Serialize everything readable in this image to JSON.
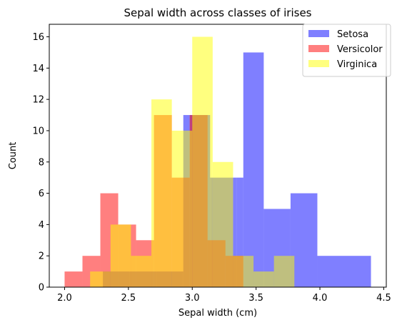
{
  "chart_data": {
    "type": "histogram",
    "title": "Sepal width across classes of irises",
    "xlabel": "Sepal width (cm)",
    "ylabel": "Count",
    "xlim": [
      1.88,
      4.52
    ],
    "ylim": [
      0,
      16.8
    ],
    "xticks": [
      "2.0",
      "2.5",
      "3.0",
      "3.5",
      "4.0",
      "4.5"
    ],
    "yticks": [
      "0",
      "2",
      "4",
      "6",
      "8",
      "10",
      "12",
      "14",
      "16"
    ],
    "legend_position": "top-right",
    "series": [
      {
        "name": "Setosa",
        "color": "#0000ff",
        "opacity": 0.5,
        "bins": [
          {
            "x0": 2.3,
            "x1": 2.51,
            "count": 1
          },
          {
            "x0": 2.51,
            "x1": 2.72,
            "count": 1
          },
          {
            "x0": 2.72,
            "x1": 2.93,
            "count": 1
          },
          {
            "x0": 2.93,
            "x1": 2.98,
            "count": 11
          },
          {
            "x0": 2.98,
            "x1": 3.14,
            "count": 11
          },
          {
            "x0": 3.14,
            "x1": 3.35,
            "count": 7
          },
          {
            "x0": 3.35,
            "x1": 3.4,
            "count": 7
          },
          {
            "x0": 3.4,
            "x1": 3.56,
            "count": 15
          },
          {
            "x0": 3.56,
            "x1": 3.77,
            "count": 5
          },
          {
            "x0": 3.77,
            "x1": 3.98,
            "count": 6
          },
          {
            "x0": 3.98,
            "x1": 4.19,
            "count": 2
          },
          {
            "x0": 4.19,
            "x1": 4.4,
            "count": 2
          }
        ]
      },
      {
        "name": "Versicolor",
        "color": "#ff0000",
        "opacity": 0.5,
        "bins": [
          {
            "x0": 2.0,
            "x1": 2.14,
            "count": 1
          },
          {
            "x0": 2.14,
            "x1": 2.28,
            "count": 2
          },
          {
            "x0": 2.28,
            "x1": 2.42,
            "count": 6
          },
          {
            "x0": 2.42,
            "x1": 2.56,
            "count": 4
          },
          {
            "x0": 2.56,
            "x1": 2.7,
            "count": 3
          },
          {
            "x0": 2.7,
            "x1": 2.84,
            "count": 11
          },
          {
            "x0": 2.84,
            "x1": 2.98,
            "count": 7
          },
          {
            "x0": 2.98,
            "x1": 3.12,
            "count": 11
          },
          {
            "x0": 3.12,
            "x1": 3.26,
            "count": 3
          },
          {
            "x0": 3.26,
            "x1": 3.4,
            "count": 2
          }
        ]
      },
      {
        "name": "Virginica",
        "color": "#ffff00",
        "opacity": 0.5,
        "bins": [
          {
            "x0": 2.2,
            "x1": 2.36,
            "count": 1
          },
          {
            "x0": 2.36,
            "x1": 2.52,
            "count": 4
          },
          {
            "x0": 2.52,
            "x1": 2.68,
            "count": 2
          },
          {
            "x0": 2.68,
            "x1": 2.84,
            "count": 12
          },
          {
            "x0": 2.84,
            "x1": 3.0,
            "count": 10
          },
          {
            "x0": 3.0,
            "x1": 3.16,
            "count": 16
          },
          {
            "x0": 3.16,
            "x1": 3.32,
            "count": 8
          },
          {
            "x0": 3.32,
            "x1": 3.48,
            "count": 2
          },
          {
            "x0": 3.48,
            "x1": 3.64,
            "count": 1
          },
          {
            "x0": 3.64,
            "x1": 3.8,
            "count": 2
          }
        ]
      }
    ]
  }
}
